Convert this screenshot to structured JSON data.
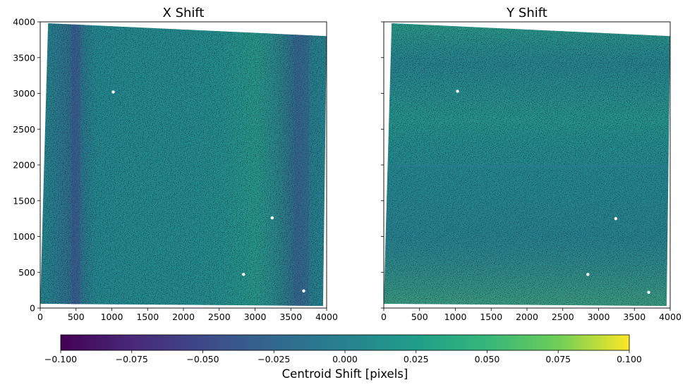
{
  "chart_data": {
    "type": "heatmap",
    "panels": [
      {
        "title": "X Shift",
        "xlim": [
          0,
          4000
        ],
        "ylim": [
          0,
          4000
        ],
        "xticks": [
          "0",
          "500",
          "1000",
          "1500",
          "2000",
          "2500",
          "3000",
          "3500",
          "4000"
        ],
        "yticks": [
          "0",
          "500",
          "1000",
          "1500",
          "2000",
          "2500",
          "3000",
          "3500",
          "4000"
        ],
        "show_ytick_labels": true,
        "footprint": [
          [
            110,
            3980
          ],
          [
            4000,
            3800
          ],
          [
            3950,
            30
          ],
          [
            0,
            60
          ]
        ],
        "streak_feature": "vertical-dark-bands",
        "holes": [
          [
            1020,
            3020
          ],
          [
            3240,
            1260
          ],
          [
            2840,
            470
          ],
          [
            3680,
            240
          ]
        ]
      },
      {
        "title": "Y Shift",
        "xlim": [
          0,
          4000
        ],
        "ylim": [
          0,
          4000
        ],
        "xticks": [
          "0",
          "500",
          "1000",
          "1500",
          "2000",
          "2500",
          "3000",
          "3500",
          "4000"
        ],
        "yticks": [
          "0",
          "500",
          "1000",
          "1500",
          "2000",
          "2500",
          "3000",
          "3500",
          "4000"
        ],
        "show_ytick_labels": false,
        "footprint": [
          [
            110,
            3980
          ],
          [
            4000,
            3800
          ],
          [
            3950,
            30
          ],
          [
            0,
            60
          ]
        ],
        "streak_feature": "horizontal-step-at-2000",
        "holes": [
          [
            1030,
            3030
          ],
          [
            3240,
            1250
          ],
          [
            2850,
            470
          ],
          [
            3700,
            220
          ]
        ]
      }
    ],
    "colorbar": {
      "label": "Centroid Shift [pixels]",
      "range": [
        -0.1,
        0.1
      ],
      "ticks": [
        "−0.100",
        "−0.075",
        "−0.050",
        "−0.025",
        "0.000",
        "0.025",
        "0.050",
        "0.075",
        "0.100"
      ],
      "colormap": "viridis"
    }
  }
}
